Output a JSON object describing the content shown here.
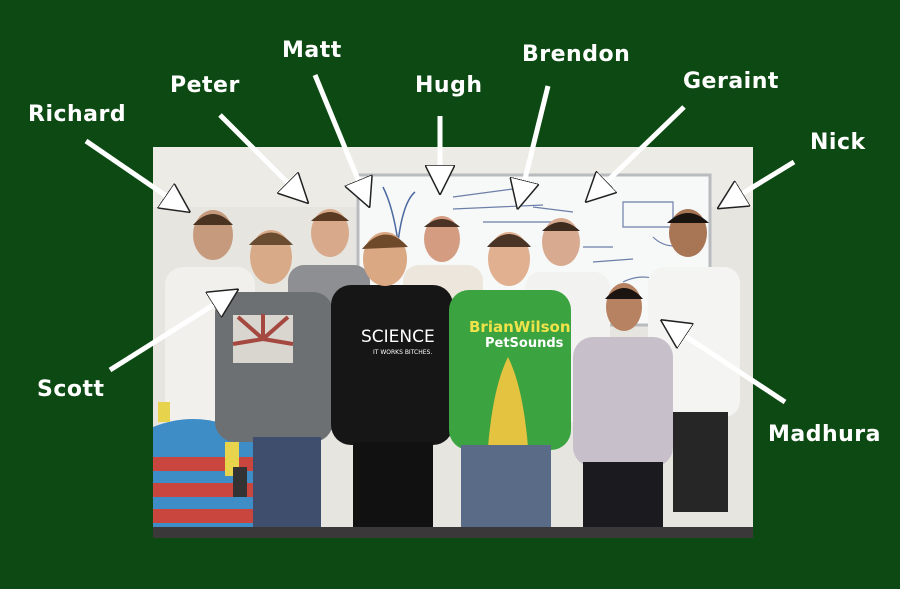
{
  "background_color": "#0d4a13",
  "labels": {
    "richard": "Richard",
    "peter": "Peter",
    "matt": "Matt",
    "hugh": "Hugh",
    "brendon": "Brendon",
    "geraint": "Geraint",
    "nick": "Nick",
    "scott": "Scott",
    "madhura": "Madhura"
  },
  "shirt_text": {
    "science_line1": "SCIENCE",
    "science_line2": "IT WORKS BITCHES.",
    "green_line1": "BrianWilson",
    "green_line2": "PetSounds"
  }
}
